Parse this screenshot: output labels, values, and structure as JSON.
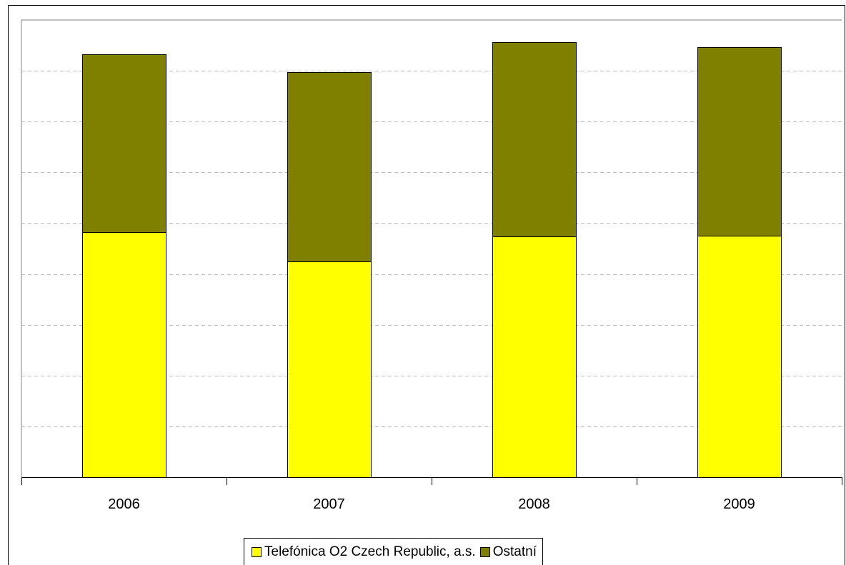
{
  "chart_data": {
    "type": "bar",
    "stacked": true,
    "categories": [
      "2006",
      "2007",
      "2008",
      "2009"
    ],
    "series": [
      {
        "name": "Telefónica O2 Czech Republic, a.s.",
        "color": "#ffff00",
        "values": [
          4.82,
          4.25,
          4.74,
          4.76
        ]
      },
      {
        "name": "Ostatní",
        "color": "#808000",
        "values": [
          3.51,
          3.73,
          3.83,
          3.7
        ]
      }
    ],
    "ylim": [
      0,
      9
    ],
    "y_gridlines": [
      1,
      2,
      3,
      4,
      5,
      6,
      7,
      8
    ],
    "y_tick_labels_shown": false,
    "grid": "dashed horizontal",
    "legend_position": "bottom"
  }
}
